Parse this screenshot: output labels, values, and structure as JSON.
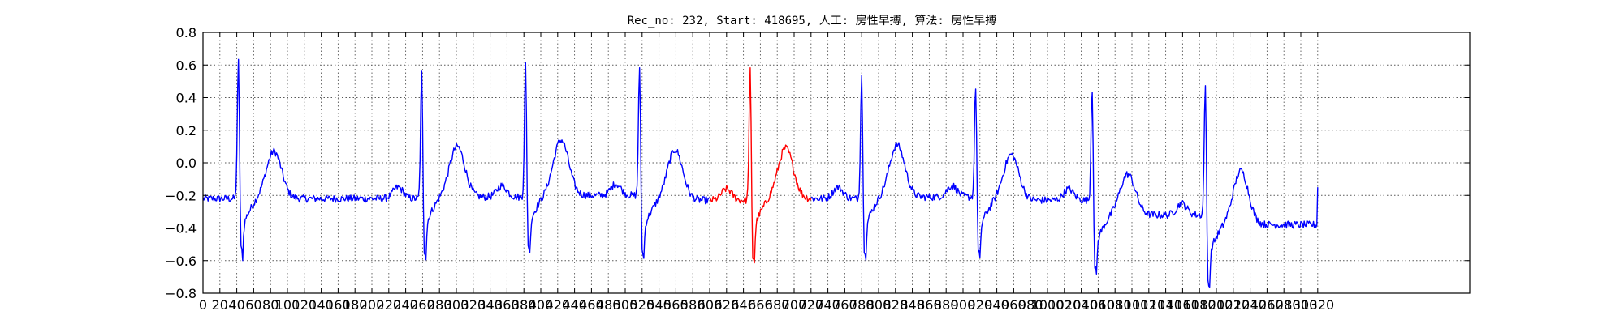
{
  "chart_data": {
    "type": "line",
    "title": "Rec_no: 232, Start: 418695, 人工: 房性早搏, 算法: 房性早搏",
    "xlabel": "",
    "ylabel": "",
    "xlim": [
      0,
      1500
    ],
    "ylim": [
      -0.8,
      0.8
    ],
    "grid": true,
    "yticks": [
      -0.8,
      -0.6,
      -0.4,
      -0.2,
      0.0,
      0.2,
      0.4,
      0.6,
      0.8
    ],
    "ytick_labels": [
      "−0.8",
      "−0.6",
      "−0.4",
      "−0.2",
      "0.0",
      "0.2",
      "0.4",
      "0.6",
      "0.8"
    ],
    "xticks": [
      0,
      20,
      40,
      60,
      80,
      100,
      120,
      140,
      160,
      180,
      200,
      220,
      240,
      260,
      280,
      300,
      320,
      340,
      360,
      380,
      400,
      420,
      440,
      460,
      480,
      500,
      520,
      540,
      560,
      580,
      600,
      620,
      640,
      660,
      680,
      700,
      720,
      740,
      760,
      780,
      800,
      820,
      840,
      860,
      880,
      900,
      920,
      940,
      960,
      980,
      1000,
      1020,
      1040,
      1060,
      1080,
      1100,
      1120,
      1140,
      1160,
      1180,
      1200,
      1220,
      1240,
      1260,
      1280,
      1300,
      1320
    ],
    "colors": {
      "normal": "#0000ff",
      "highlight": "#ff0000"
    },
    "highlight_range": [
      600,
      720
    ],
    "beats": [
      {
        "r": 42,
        "rAmp": 0.67,
        "sAmp": -0.59,
        "tAmp": 0.07,
        "base": -0.22
      },
      {
        "r": 259,
        "rAmp": 0.6,
        "sAmp": -0.6,
        "tAmp": 0.1,
        "base": -0.21
      },
      {
        "r": 382,
        "rAmp": 0.65,
        "sAmp": -0.57,
        "tAmp": 0.14,
        "base": -0.2
      },
      {
        "r": 517,
        "rAmp": 0.62,
        "sAmp": -0.6,
        "tAmp": 0.08,
        "base": -0.23
      },
      {
        "r": 648,
        "rAmp": 0.62,
        "sAmp": -0.64,
        "tAmp": 0.09,
        "base": -0.22
      },
      {
        "r": 780,
        "rAmp": 0.59,
        "sAmp": -0.59,
        "tAmp": 0.11,
        "base": -0.21
      },
      {
        "r": 915,
        "rAmp": 0.52,
        "sAmp": -0.61,
        "tAmp": 0.05,
        "base": -0.23
      },
      {
        "r": 1053,
        "rAmp": 0.49,
        "sAmp": -0.71,
        "tAmp": -0.07,
        "base": -0.32
      },
      {
        "r": 1187,
        "rAmp": 0.51,
        "sAmp": -0.79,
        "tAmp": -0.05,
        "base": -0.38
      }
    ],
    "end_x": 1320,
    "end_y": -0.15
  }
}
